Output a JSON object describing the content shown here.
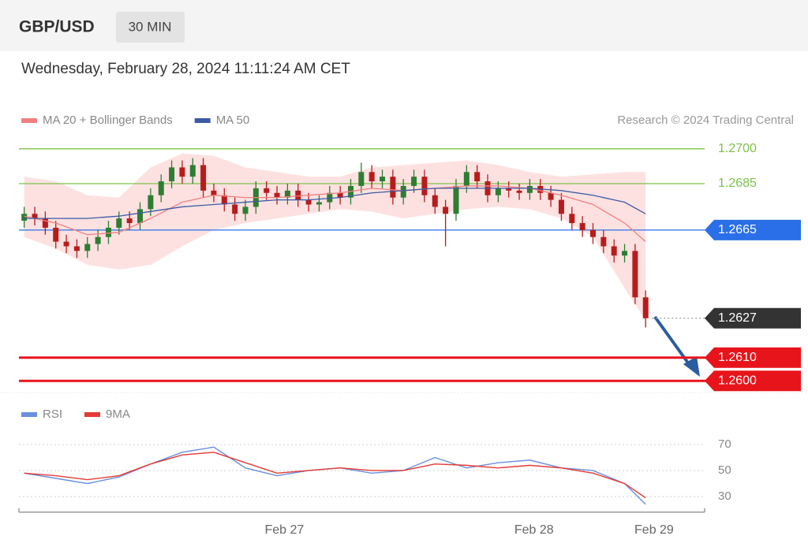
{
  "header": {
    "symbol": "GBP/USD",
    "interval": "30 MIN",
    "timestamp": "Wednesday, February 28, 2024 11:11:24 AM CET",
    "credit": "Research © 2024 Trading Central"
  },
  "chart_data": [
    {
      "type": "candlestick",
      "x": [
        0,
        1,
        2,
        3,
        4,
        5,
        6,
        7,
        8,
        9,
        10,
        11,
        12,
        13,
        14,
        15,
        16,
        17,
        18,
        19,
        20,
        21,
        22,
        23,
        24,
        25,
        26,
        27,
        28,
        29,
        30,
        31,
        32,
        33,
        34,
        35,
        36,
        37,
        38,
        39,
        40,
        41,
        42,
        43,
        44,
        45,
        46,
        47,
        48,
        49,
        50,
        51,
        52,
        53,
        54,
        55,
        56,
        57,
        58,
        59
      ],
      "open": [
        1.2669,
        1.2672,
        1.267,
        1.2666,
        1.266,
        1.2658,
        1.2656,
        1.2659,
        1.2662,
        1.2666,
        1.267,
        1.2668,
        1.2674,
        1.268,
        1.2686,
        1.2692,
        1.2688,
        1.2693,
        1.2682,
        1.268,
        1.2676,
        1.2672,
        1.2675,
        1.2683,
        1.2681,
        1.2679,
        1.2682,
        1.2678,
        1.2676,
        1.2677,
        1.2681,
        1.2679,
        1.2684,
        1.269,
        1.2686,
        1.2688,
        1.2679,
        1.2684,
        1.2688,
        1.268,
        1.2675,
        1.2672,
        1.2684,
        1.269,
        1.2686,
        1.268,
        1.2683,
        1.2682,
        1.2681,
        1.2684,
        1.2681,
        1.2678,
        1.2672,
        1.2668,
        1.2665,
        1.2662,
        1.2658,
        1.2654,
        1.2656,
        1.2636
      ],
      "high": [
        1.2675,
        1.2675,
        1.2673,
        1.2669,
        1.2663,
        1.2661,
        1.2662,
        1.2665,
        1.2669,
        1.2673,
        1.2673,
        1.2677,
        1.2683,
        1.2689,
        1.2695,
        1.2695,
        1.2696,
        1.2696,
        1.2685,
        1.2683,
        1.2679,
        1.2678,
        1.2686,
        1.2686,
        1.2684,
        1.2685,
        1.2685,
        1.2681,
        1.268,
        1.2684,
        1.2684,
        1.2687,
        1.2694,
        1.2693,
        1.2691,
        1.2691,
        1.2687,
        1.2691,
        1.2691,
        1.2683,
        1.2678,
        1.2687,
        1.2693,
        1.2693,
        1.2689,
        1.2686,
        1.2686,
        1.2685,
        1.2687,
        1.2687,
        1.2684,
        1.2681,
        1.2675,
        1.2671,
        1.2668,
        1.2665,
        1.2661,
        1.2659,
        1.2659,
        1.2639
      ],
      "low": [
        1.2666,
        1.2667,
        1.2663,
        1.2657,
        1.2655,
        1.2653,
        1.2653,
        1.2656,
        1.2659,
        1.2663,
        1.2665,
        1.2665,
        1.2671,
        1.2677,
        1.2683,
        1.2685,
        1.2685,
        1.2679,
        1.2677,
        1.2673,
        1.2669,
        1.2669,
        1.2672,
        1.2678,
        1.2676,
        1.2676,
        1.2675,
        1.2673,
        1.2673,
        1.2674,
        1.2676,
        1.2676,
        1.2681,
        1.2683,
        1.2683,
        1.2676,
        1.2676,
        1.2681,
        1.2677,
        1.2672,
        1.2658,
        1.2669,
        1.2681,
        1.2683,
        1.2677,
        1.2677,
        1.2679,
        1.2678,
        1.2678,
        1.2678,
        1.2675,
        1.2669,
        1.2665,
        1.2662,
        1.2659,
        1.2655,
        1.2651,
        1.2651,
        1.2633,
        1.2623
      ],
      "close": [
        1.2672,
        1.267,
        1.2666,
        1.266,
        1.2658,
        1.2656,
        1.2659,
        1.2662,
        1.2666,
        1.267,
        1.2668,
        1.2674,
        1.268,
        1.2686,
        1.2692,
        1.2688,
        1.2693,
        1.2682,
        1.268,
        1.2676,
        1.2672,
        1.2675,
        1.2683,
        1.2681,
        1.2679,
        1.2682,
        1.2678,
        1.2676,
        1.2677,
        1.2681,
        1.2679,
        1.2684,
        1.269,
        1.2686,
        1.2688,
        1.2679,
        1.2684,
        1.2688,
        1.268,
        1.2675,
        1.2672,
        1.2684,
        1.269,
        1.2686,
        1.268,
        1.2683,
        1.2682,
        1.2681,
        1.2684,
        1.2681,
        1.2678,
        1.2672,
        1.2668,
        1.2665,
        1.2662,
        1.2658,
        1.2654,
        1.2656,
        1.2636,
        1.2627
      ],
      "up_color": "#2e7d32",
      "down_color": "#b71c1c",
      "overlays": {
        "x": [
          0,
          3,
          6,
          9,
          12,
          15,
          18,
          21,
          24,
          27,
          30,
          33,
          36,
          39,
          42,
          45,
          48,
          51,
          54,
          57,
          59
        ],
        "series": [
          {
            "name": "MA 20 + Bollinger Bands",
            "color": "#f08080",
            "band_color": "#fcd9d9",
            "values": [
              1.2671,
              1.2668,
              1.2663,
              1.2664,
              1.267,
              1.2677,
              1.268,
              1.2679,
              1.2679,
              1.268,
              1.2681,
              1.2683,
              1.2682,
              1.2683,
              1.2684,
              1.2684,
              1.2683,
              1.268,
              1.2676,
              1.2668,
              1.266
            ],
            "upper": [
              1.2688,
              1.2686,
              1.268,
              1.2679,
              1.2692,
              1.2698,
              1.2697,
              1.2692,
              1.269,
              1.2688,
              1.2688,
              1.2692,
              1.2693,
              1.2694,
              1.2695,
              1.2693,
              1.269,
              1.2688,
              1.2689,
              1.269,
              1.269
            ],
            "lower": [
              1.2662,
              1.2657,
              1.265,
              1.2648,
              1.265,
              1.2658,
              1.2665,
              1.2668,
              1.267,
              1.2672,
              1.2674,
              1.2673,
              1.267,
              1.2672,
              1.2674,
              1.2675,
              1.2674,
              1.267,
              1.2662,
              1.264,
              1.2626
            ]
          },
          {
            "name": "MA 50",
            "color": "#3b5ba5",
            "values": [
              1.267,
              1.267,
              1.267,
              1.2671,
              1.2673,
              1.2675,
              1.2676,
              1.2677,
              1.2678,
              1.2678,
              1.2679,
              1.2681,
              1.2682,
              1.2683,
              1.2683,
              1.2683,
              1.2683,
              1.2682,
              1.268,
              1.2677,
              1.2672
            ]
          }
        ]
      },
      "levels": [
        {
          "value": 1.27,
          "label": "1.2700",
          "color": "#7cc24a",
          "style": "line",
          "tag": false
        },
        {
          "value": 1.2685,
          "label": "1.2685",
          "color": "#7cc24a",
          "style": "line",
          "tag": false
        },
        {
          "value": 1.2665,
          "label": "1.2665",
          "color": "#2a6fe8",
          "style": "line",
          "tag": true
        },
        {
          "value": 1.2627,
          "label": "1.2627",
          "color": "#333333",
          "style": "dotted",
          "tag": true
        },
        {
          "value": 1.261,
          "label": "1.2610",
          "color": "#e8141b",
          "style": "thick",
          "tag": true
        },
        {
          "value": 1.26,
          "label": "1.2600",
          "color": "#e8141b",
          "style": "thick",
          "tag": true
        }
      ],
      "xlim": [
        -0.5,
        64.6
      ],
      "ylim": [
        1.2596,
        1.2703
      ]
    },
    {
      "type": "line",
      "x": [
        0,
        3,
        6,
        9,
        12,
        15,
        18,
        21,
        24,
        27,
        30,
        33,
        36,
        39,
        42,
        45,
        48,
        51,
        54,
        57,
        59
      ],
      "series": [
        {
          "name": "RSI",
          "color": "#6a8fe0",
          "values": [
            48,
            44,
            40,
            45,
            55,
            64,
            68,
            52,
            46,
            50,
            52,
            48,
            50,
            60,
            52,
            56,
            58,
            52,
            50,
            40,
            24
          ]
        },
        {
          "name": "9MA",
          "color": "#e53935",
          "values": [
            48,
            46,
            43,
            46,
            55,
            62,
            64,
            56,
            48,
            50,
            52,
            50,
            50,
            55,
            54,
            52,
            54,
            52,
            48,
            40,
            29
          ]
        }
      ],
      "xlim": [
        -0.5,
        64.6
      ],
      "ylim": [
        18,
        75
      ],
      "yticks": [
        30,
        50,
        70
      ],
      "grid": true,
      "xticks": [
        {
          "value": 24.7,
          "label": "Feb 27"
        },
        {
          "value": 48.4,
          "label": "Feb 28"
        },
        {
          "value": 59.8,
          "label": "Feb 29"
        }
      ]
    }
  ]
}
